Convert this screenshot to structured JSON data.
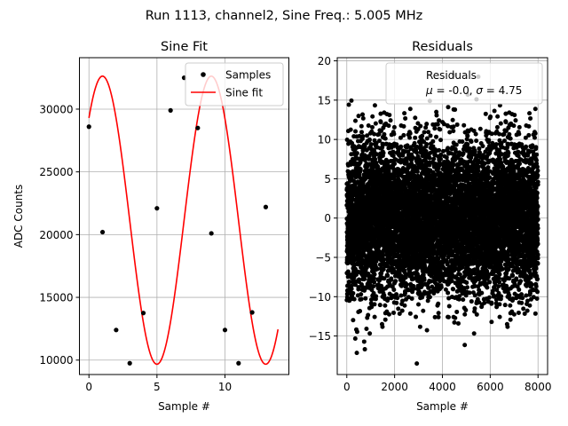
{
  "figure": {
    "suptitle": "Run 1113, channel2, Sine Freq.: 5.005 MHz"
  },
  "colors": {
    "samples": "#000000",
    "fit": "#ff0000",
    "grid": "#b0b0b0"
  },
  "chart_data": [
    {
      "type": "scatter+line",
      "title": "Sine Fit",
      "xlabel": "Sample #",
      "ylabel": "ADC Counts",
      "xlim": [
        -0.7,
        14.7
      ],
      "ylim": [
        8850,
        34100
      ],
      "xticks": [
        0,
        5,
        10
      ],
      "yticks": [
        10000,
        15000,
        20000,
        25000,
        30000
      ],
      "grid": true,
      "legend": {
        "position": "top-right",
        "entries": [
          "Samples",
          "Sine fit"
        ]
      },
      "samples": {
        "name": "Samples",
        "x": [
          0,
          1,
          2,
          3,
          4,
          5,
          6,
          7,
          8,
          9,
          10,
          11,
          12,
          13
        ],
        "y": [
          28600,
          20200,
          12400,
          9750,
          13750,
          22100,
          29900,
          32500,
          28500,
          20100,
          12400,
          9750,
          13800,
          22200
        ]
      },
      "fit": {
        "name": "Sine fit",
        "amplitude": 11480,
        "offset": 21150,
        "period": 8,
        "phase_deg": 45.2,
        "x_range": [
          0,
          13.9
        ]
      }
    },
    {
      "type": "scatter",
      "title": "Residuals",
      "xlabel": "Sample #",
      "xlim": [
        -400,
        8400
      ],
      "ylim": [
        -19.9,
        20.4
      ],
      "xticks": [
        0,
        2000,
        4000,
        6000,
        8000
      ],
      "yticks": [
        -15,
        -10,
        -5,
        0,
        5,
        10,
        15,
        20
      ],
      "grid": true,
      "legend": {
        "position": "top-right",
        "entries": [
          "Residuals",
          "$\\mu$ = -0.0, $\\sigma$ = 4.75"
        ]
      },
      "series": {
        "name": "Residuals",
        "n_points": 8000,
        "mean": -0.0,
        "std": 4.75
      }
    }
  ]
}
